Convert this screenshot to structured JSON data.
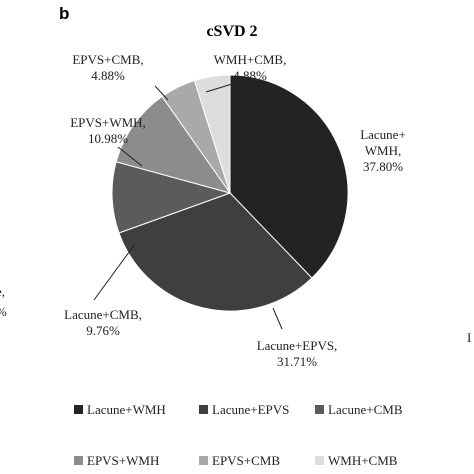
{
  "panel_letter": "b",
  "edge_fragments": {
    "left_line1": "e,",
    "left_line2": "%",
    "right": "I"
  },
  "chart_data": {
    "type": "pie",
    "title": "cSVD 2",
    "slices": [
      {
        "label": "Lacune+WMH",
        "value": 37.8,
        "pct_text": "37.80%",
        "color": "#232323",
        "label_lines": [
          "Lacune+",
          "WMH,",
          "37.80%"
        ]
      },
      {
        "label": "Lacune+EPVS",
        "value": 31.71,
        "pct_text": "31.71%",
        "color": "#3f3f3f",
        "label_lines": [
          "Lacune+EPVS,",
          "31.71%"
        ]
      },
      {
        "label": "Lacune+CMB",
        "value": 9.76,
        "pct_text": "9.76%",
        "color": "#5b5b5b",
        "label_lines": [
          "Lacune+CMB,",
          "9.76%"
        ]
      },
      {
        "label": "EPVS+WMH",
        "value": 10.98,
        "pct_text": "10.98%",
        "color": "#8c8c8c",
        "label_lines": [
          "EPVS+WMH,",
          "10.98%"
        ]
      },
      {
        "label": "EPVS+CMB",
        "value": 4.88,
        "pct_text": "4.88%",
        "color": "#a9a9a9",
        "label_lines": [
          "EPVS+CMB,",
          "4.88%"
        ]
      },
      {
        "label": "WMH+CMB",
        "value": 4.88,
        "pct_text": "4.88%",
        "color": "#dddddd",
        "label_lines": [
          "WMH+CMB,",
          "4.88%"
        ]
      }
    ],
    "legend": {
      "placement": "bottom",
      "items": [
        "Lacune+WMH",
        "Lacune+EPVS",
        "Lacune+CMB",
        "EPVS+WMH",
        "EPVS+CMB",
        "WMH+CMB"
      ]
    }
  }
}
